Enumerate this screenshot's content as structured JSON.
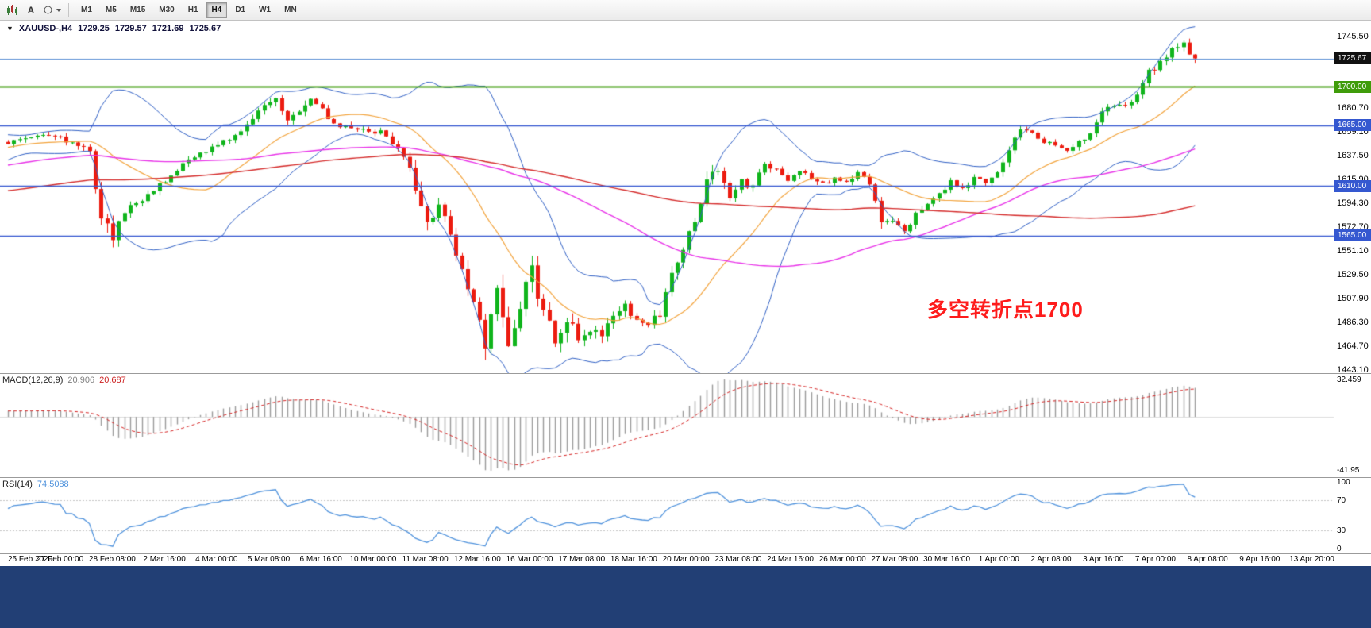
{
  "toolbar": {
    "a_button_label": "A",
    "timeframes": [
      "M1",
      "M5",
      "M15",
      "M30",
      "H1",
      "H4",
      "D1",
      "W1",
      "MN"
    ],
    "active_timeframe": "H4"
  },
  "chart_header": {
    "dropdown_icon": "▼",
    "symbol": "XAUUSD-,H4",
    "open": "1729.25",
    "high": "1729.57",
    "low": "1721.69",
    "close": "1725.67"
  },
  "annotation": {
    "text": "多空转折点1700",
    "color": "#fe1c1c"
  },
  "price_axis": {
    "labels": [
      "1745.50",
      "1680.70",
      "1659.10",
      "1637.50",
      "1615.90",
      "1594.30",
      "1572.70",
      "1551.10",
      "1529.50",
      "1507.90",
      "1486.30",
      "1464.70",
      "1443.10"
    ],
    "badges": [
      {
        "text": "1725.67",
        "price": 1725.67,
        "color": "#111111"
      },
      {
        "text": "1700.00",
        "price": 1700.0,
        "color": "#3f9c0a"
      },
      {
        "text": "1665.00",
        "price": 1665.0,
        "color": "#3558d0"
      },
      {
        "text": "1610.00",
        "price": 1610.0,
        "color": "#3558d0"
      },
      {
        "text": "1565.00",
        "price": 1565.0,
        "color": "#3558d0"
      }
    ]
  },
  "macd_panel": {
    "name": "MACD(12,26,9)",
    "value_main": "20.906",
    "value_signal": "20.687",
    "axis_labels": [
      {
        "text": "32.459",
        "pos": "top"
      },
      {
        "text": "-41.95",
        "pos": "bottom"
      }
    ]
  },
  "rsi_panel": {
    "name": "RSI(14)",
    "value": "74.5088",
    "axis_labels": [
      {
        "text": "100",
        "level": 100
      },
      {
        "text": "70",
        "level": 70
      },
      {
        "text": "30",
        "level": 30
      },
      {
        "text": "0",
        "level": 0
      }
    ]
  },
  "time_axis": [
    "25 Feb 2020",
    "27 Feb 00:00",
    "28 Feb 08:00",
    "2 Mar 16:00",
    "4 Mar 00:00",
    "5 Mar 08:00",
    "6 Mar 16:00",
    "10 Mar 00:00",
    "11 Mar 08:00",
    "12 Mar 16:00",
    "16 Mar 00:00",
    "17 Mar 08:00",
    "18 Mar 16:00",
    "20 Mar 00:00",
    "23 Mar 08:00",
    "24 Mar 16:00",
    "26 Mar 00:00",
    "27 Mar 08:00",
    "30 Mar 16:00",
    "1 Apr 00:00",
    "2 Apr 08:00",
    "3 Apr 16:00",
    "7 Apr 00:00",
    "8 Apr 08:00",
    "9 Apr 16:00",
    "13 Apr 20:00"
  ],
  "chart_data": {
    "type": "candlestick",
    "symbol": "XAUUSD",
    "timeframe": "H4",
    "visible_price_range": [
      1443.1,
      1757.0
    ],
    "candle_count": 205,
    "last_candle_ohlc": [
      1729.25,
      1729.57,
      1721.69,
      1725.67
    ],
    "up_color": "#10b41c",
    "down_color": "#ec1c10",
    "horizontal_lines": [
      {
        "price": 1700.0,
        "color": "#3f9c0a",
        "width": 2
      },
      {
        "price": 1665.0,
        "color": "#3558d0",
        "width": 1.4
      },
      {
        "price": 1610.0,
        "color": "#3558d0",
        "width": 1.4
      },
      {
        "price": 1565.0,
        "color": "#3558d0",
        "width": 1.4
      }
    ],
    "bid_line": {
      "price": 1725.67,
      "color": "#5b8fd4"
    },
    "close_path_anchors": [
      [
        0,
        1650,
        9
      ],
      [
        4,
        1656,
        8
      ],
      [
        8,
        1655,
        8
      ],
      [
        12,
        1648,
        9
      ],
      [
        14,
        1640,
        10
      ],
      [
        15,
        1612,
        22
      ],
      [
        16,
        1585,
        25
      ],
      [
        18,
        1565,
        18
      ],
      [
        20,
        1588,
        14
      ],
      [
        24,
        1602,
        10
      ],
      [
        28,
        1620,
        9
      ],
      [
        32,
        1638,
        9
      ],
      [
        36,
        1648,
        8
      ],
      [
        40,
        1658,
        9
      ],
      [
        44,
        1684,
        11
      ],
      [
        46,
        1690,
        10
      ],
      [
        48,
        1671,
        10
      ],
      [
        52,
        1689,
        11
      ],
      [
        54,
        1678,
        10
      ],
      [
        56,
        1666,
        9
      ],
      [
        60,
        1661,
        8
      ],
      [
        64,
        1659,
        9
      ],
      [
        66,
        1649,
        10
      ],
      [
        68,
        1638,
        13
      ],
      [
        70,
        1608,
        19
      ],
      [
        72,
        1576,
        21
      ],
      [
        74,
        1591,
        16
      ],
      [
        76,
        1570,
        16
      ],
      [
        78,
        1532,
        23
      ],
      [
        80,
        1506,
        26
      ],
      [
        82,
        1461,
        31
      ],
      [
        84,
        1514,
        34
      ],
      [
        86,
        1472,
        30
      ],
      [
        88,
        1499,
        26
      ],
      [
        90,
        1534,
        26
      ],
      [
        92,
        1491,
        28
      ],
      [
        94,
        1473,
        23
      ],
      [
        96,
        1489,
        21
      ],
      [
        98,
        1471,
        18
      ],
      [
        100,
        1481,
        16
      ],
      [
        102,
        1473,
        15
      ],
      [
        104,
        1491,
        13
      ],
      [
        106,
        1501,
        13
      ],
      [
        108,
        1489,
        12
      ],
      [
        110,
        1486,
        12
      ],
      [
        112,
        1494,
        13
      ],
      [
        114,
        1528,
        20
      ],
      [
        116,
        1554,
        19
      ],
      [
        118,
        1579,
        18
      ],
      [
        120,
        1618,
        17
      ],
      [
        122,
        1627,
        13
      ],
      [
        124,
        1601,
        15
      ],
      [
        126,
        1614,
        11
      ],
      [
        128,
        1609,
        11
      ],
      [
        130,
        1630,
        11
      ],
      [
        132,
        1624,
        10
      ],
      [
        134,
        1617,
        9
      ],
      [
        136,
        1624,
        9
      ],
      [
        138,
        1616,
        8
      ],
      [
        140,
        1611,
        8
      ],
      [
        142,
        1617,
        8
      ],
      [
        144,
        1612,
        8
      ],
      [
        146,
        1621,
        8
      ],
      [
        148,
        1611,
        10
      ],
      [
        150,
        1578,
        15
      ],
      [
        152,
        1581,
        11
      ],
      [
        154,
        1571,
        11
      ],
      [
        156,
        1584,
        10
      ],
      [
        158,
        1592,
        9
      ],
      [
        160,
        1604,
        9
      ],
      [
        162,
        1614,
        8
      ],
      [
        164,
        1608,
        8
      ],
      [
        166,
        1617,
        8
      ],
      [
        168,
        1613,
        8
      ],
      [
        170,
        1621,
        9
      ],
      [
        172,
        1644,
        11
      ],
      [
        174,
        1664,
        11
      ],
      [
        176,
        1657,
        9
      ],
      [
        178,
        1651,
        8
      ],
      [
        180,
        1646,
        8
      ],
      [
        182,
        1643,
        8
      ],
      [
        184,
        1649,
        8
      ],
      [
        186,
        1656,
        9
      ],
      [
        188,
        1678,
        11
      ],
      [
        190,
        1684,
        9
      ],
      [
        192,
        1681,
        8
      ],
      [
        194,
        1694,
        10
      ],
      [
        196,
        1713,
        11
      ],
      [
        198,
        1721,
        9
      ],
      [
        200,
        1734,
        10
      ],
      [
        202,
        1741,
        9
      ],
      [
        204,
        1727,
        8
      ]
    ],
    "indicators": {
      "bollinger": {
        "period": 20,
        "deviation": 2,
        "color": "#2f5fc4"
      },
      "sma_fast": {
        "period": 20,
        "color": "#f2a33c"
      },
      "sma_mid": {
        "period": 64,
        "color": "#e832e8"
      },
      "sma_slow": {
        "period": 128,
        "color": "#d42a2a"
      },
      "macd": {
        "fast": 12,
        "slow": 26,
        "signal": 9,
        "histogram_color": "#9a9a9a",
        "signal_color": "#d42222",
        "range": [
          -41.95,
          32.459
        ]
      },
      "rsi": {
        "period": 14,
        "color": "#4f92dc",
        "levels": [
          70,
          30
        ],
        "last_value": 74.5088
      }
    }
  }
}
